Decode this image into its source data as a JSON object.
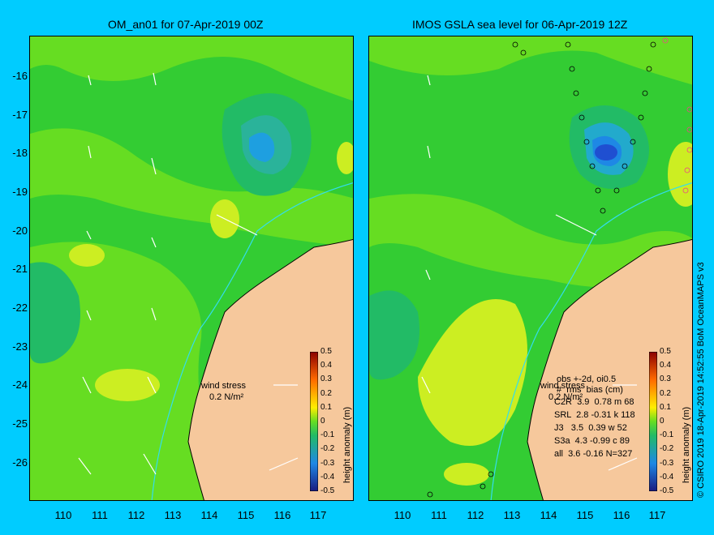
{
  "left_panel": {
    "title": "OM_an01 for 07-Apr-2019 00Z",
    "wind_stress_label": "wind stress",
    "wind_stress_scale": "0.2 N/m²"
  },
  "right_panel": {
    "title": "IMOS GSLA sea level  for 06-Apr-2019 12Z",
    "wind_stress_label": "wind stress",
    "wind_stress_scale": "0.2 N/m²",
    "stats_header": "obs +-2d, oi0.5\n#  rms  bias (cm)",
    "stats_rows": [
      "C2R  3.9  0.78 m 68",
      "SRL  2.8 -0.31 k 118",
      "J3   3.5  0.39 w 52",
      "S3a  4.3 -0.99 c 89",
      "all  3.6 -0.16 N=327"
    ]
  },
  "y_ticks": [
    "-16",
    "-17",
    "-18",
    "-19",
    "-20",
    "-21",
    "-22",
    "-23",
    "-24",
    "-25",
    "-26"
  ],
  "x_ticks": [
    "110",
    "111",
    "112",
    "113",
    "114",
    "115",
    "116",
    "117"
  ],
  "colorbar": {
    "label": "height anomaly (m)",
    "ticks": [
      "0.5",
      "0.4",
      "0.3",
      "0.2",
      "0.1",
      "0",
      "-0.1",
      "-0.2",
      "-0.3",
      "-0.4",
      "-0.5"
    ]
  },
  "credit": "© CSIRO 2019   18-Apr-2019 14:52:55 BoM OceanMAPS v3",
  "colors": {
    "background": "#00ccff",
    "land": "#f6c89c",
    "sea_base": "#33cc33",
    "sea_light": "#66dd22",
    "sea_yellow": "#ccee22",
    "sea_low": "#22bb66",
    "low_anomaly": "#1e88e5",
    "deep_low": "#1f4fd1"
  }
}
